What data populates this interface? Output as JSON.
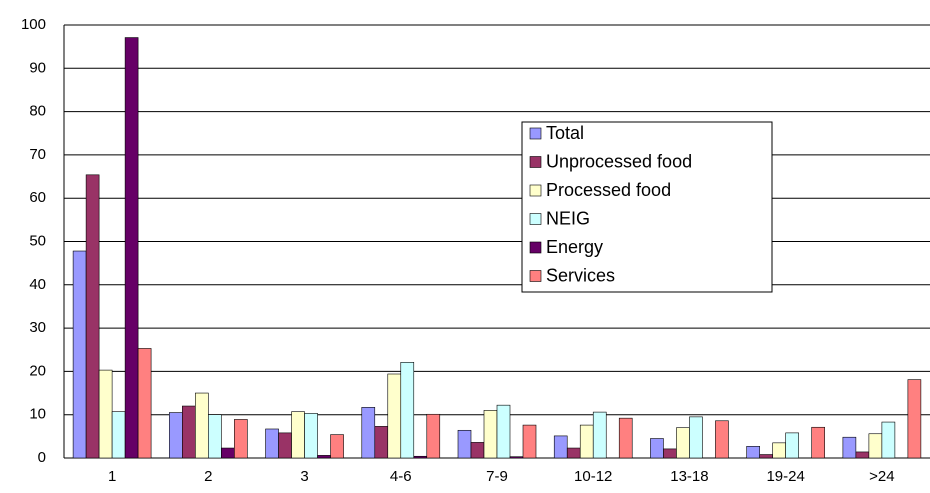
{
  "chart_data": {
    "type": "bar",
    "categories": [
      "1",
      "2",
      "3",
      "4-6",
      "7-9",
      "10-12",
      "13-18",
      "19-24",
      ">24"
    ],
    "series": [
      {
        "name": "Total",
        "color": "#9999ff",
        "values": [
          47.8,
          10.5,
          6.7,
          11.7,
          6.4,
          5.1,
          4.5,
          2.7,
          4.8
        ]
      },
      {
        "name": "Unprocessed food",
        "color": "#993366",
        "values": [
          65.4,
          12,
          5.8,
          7.3,
          3.6,
          2.3,
          2.1,
          0.8,
          1.4
        ]
      },
      {
        "name": "Processed food",
        "color": "#ffffcc",
        "values": [
          20.3,
          15,
          10.7,
          19.4,
          11,
          7.6,
          7,
          3.5,
          5.6
        ]
      },
      {
        "name": "NEIG",
        "color": "#ccffff",
        "values": [
          10.7,
          10,
          10.3,
          22.1,
          12.2,
          10.6,
          9.5,
          5.8,
          8.3
        ]
      },
      {
        "name": "Energy",
        "color": "#660066",
        "values": [
          97.1,
          2.3,
          0.6,
          0.4,
          0.3,
          0,
          0,
          0,
          0
        ]
      },
      {
        "name": "Services",
        "color": "#ff8080",
        "values": [
          25.3,
          8.9,
          5.4,
          10.1,
          7.6,
          9.2,
          8.6,
          7.1,
          18.1
        ]
      }
    ],
    "ylim": [
      0,
      100
    ],
    "yticks": [
      0,
      10,
      20,
      30,
      40,
      50,
      60,
      70,
      80,
      90,
      100
    ],
    "grid": true
  }
}
